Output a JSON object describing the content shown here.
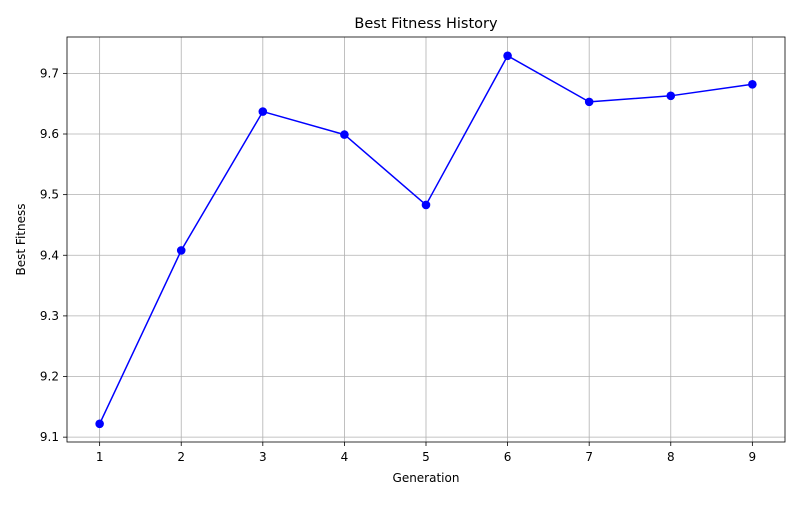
{
  "chart_data": {
    "type": "line",
    "title": "Best Fitness History",
    "xlabel": "Generation",
    "ylabel": "Best Fitness",
    "x": [
      1,
      2,
      3,
      4,
      5,
      6,
      7,
      8,
      9
    ],
    "series": [
      {
        "values": [
          9.122,
          9.408,
          9.637,
          9.599,
          9.483,
          9.729,
          9.653,
          9.663,
          9.682
        ],
        "color": "#0000ff",
        "marker": "circle"
      }
    ],
    "xticks": [
      "1",
      "2",
      "3",
      "4",
      "5",
      "6",
      "7",
      "8",
      "9"
    ],
    "yticks": [
      "9.1",
      "9.2",
      "9.3",
      "9.4",
      "9.5",
      "9.6",
      "9.7"
    ],
    "xlim": [
      0.6,
      9.4
    ],
    "ylim": [
      9.092,
      9.76
    ],
    "grid": true
  }
}
